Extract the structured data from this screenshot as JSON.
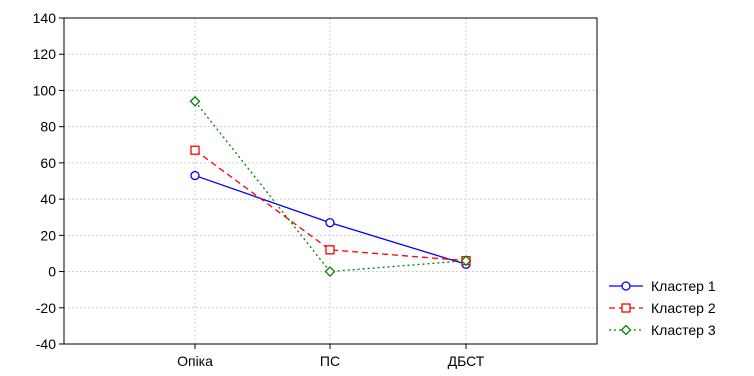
{
  "chart_data": {
    "type": "line",
    "title": "",
    "xlabel": "",
    "ylabel": "",
    "categories": [
      "Опіка",
      "ПС",
      "ДБСТ"
    ],
    "ylim": [
      -40,
      140
    ],
    "yticks": [
      -40,
      -20,
      0,
      20,
      40,
      60,
      80,
      100,
      120,
      140
    ],
    "grid": true,
    "legend_position": "right",
    "series": [
      {
        "name": "Кластер  1",
        "values": [
          53,
          27,
          4
        ],
        "color": "#0000ff",
        "dash": "solid",
        "marker": "circle"
      },
      {
        "name": "Кластер  2",
        "values": [
          67,
          12,
          6
        ],
        "color": "#ff0000",
        "dash": "dashed",
        "marker": "square"
      },
      {
        "name": "Кластер  3",
        "values": [
          94,
          0,
          6
        ],
        "color": "#008000",
        "dash": "dotted",
        "marker": "diamond"
      }
    ]
  }
}
